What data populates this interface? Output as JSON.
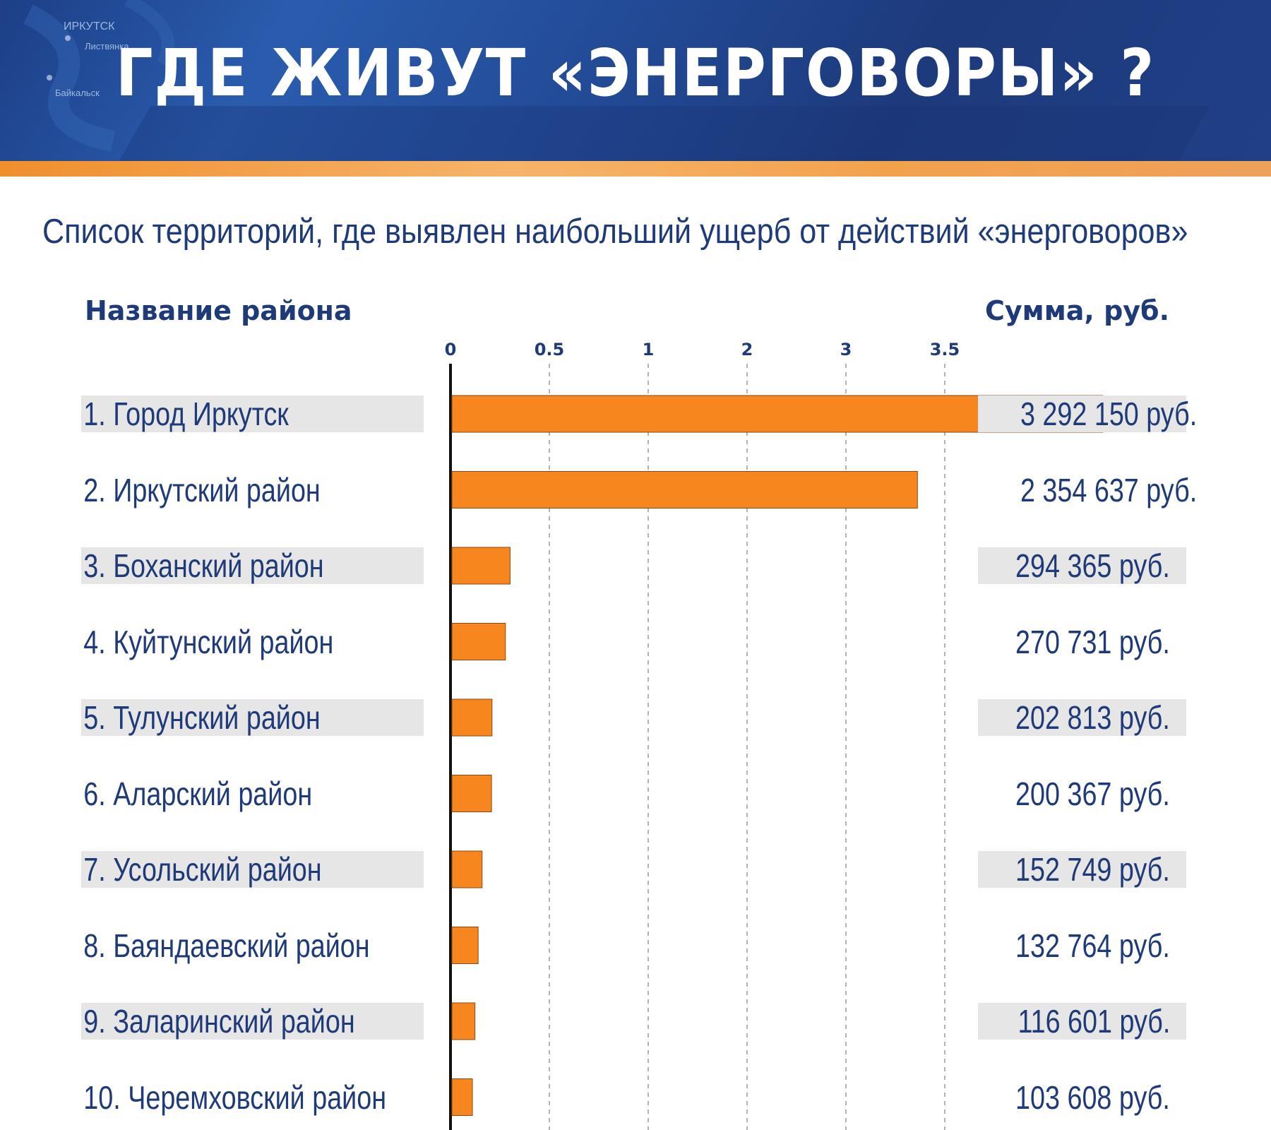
{
  "banner": {
    "title": "ГДЕ  ЖИВУТ  «ЭНЕРГОВОРЫ» ?",
    "map_labels": [
      "ИРКУТСК",
      "Листвянка",
      "Байкальск"
    ]
  },
  "subtitle": "Список территорий, где выявлен наибольший  ущерб от действий «энерговоров»",
  "headers": {
    "name": "Название  района",
    "sum": "Сумма,  руб."
  },
  "colors": {
    "banner": "#1d3f86",
    "accent": "#f7861e",
    "text": "#1e3a78",
    "row_shade": "#e6e6e6"
  },
  "chart_data": {
    "type": "bar",
    "orientation": "horizontal",
    "axis_ticks": [
      "0",
      "0.5",
      "1",
      "2",
      "3",
      "3.5"
    ],
    "grid": true,
    "rows": [
      {
        "label": "1. Город Иркутск",
        "value_text": "3 292 150 руб.",
        "value": 3292150,
        "shaded": true
      },
      {
        "label": "2.  Иркутский район",
        "value_text": "2 354 637 руб.",
        "value": 2354637,
        "shaded": false
      },
      {
        "label": "3.  Боханский район",
        "value_text": "294 365 руб.",
        "value": 294365,
        "shaded": true
      },
      {
        "label": "4.  Куйтунский район",
        "value_text": "270 731 руб.",
        "value": 270731,
        "shaded": false
      },
      {
        "label": "5.  Тулунский район",
        "value_text": "202 813 руб.",
        "value": 202813,
        "shaded": true
      },
      {
        "label": "6.  Аларский район",
        "value_text": "200 367 руб.",
        "value": 200367,
        "shaded": false
      },
      {
        "label": "7.  Усольский район",
        "value_text": "152 749 руб.",
        "value": 152749,
        "shaded": true
      },
      {
        "label": "8.  Баяндаевский район",
        "value_text": "132 764 руб.",
        "value": 132764,
        "shaded": false
      },
      {
        "label": "9.  Заларинский район",
        "value_text": "116 601 руб.",
        "value": 116601,
        "shaded": true
      },
      {
        "label": "10. Черемховский район",
        "value_text": "103 608 руб.",
        "value": 103608,
        "shaded": false
      }
    ]
  }
}
